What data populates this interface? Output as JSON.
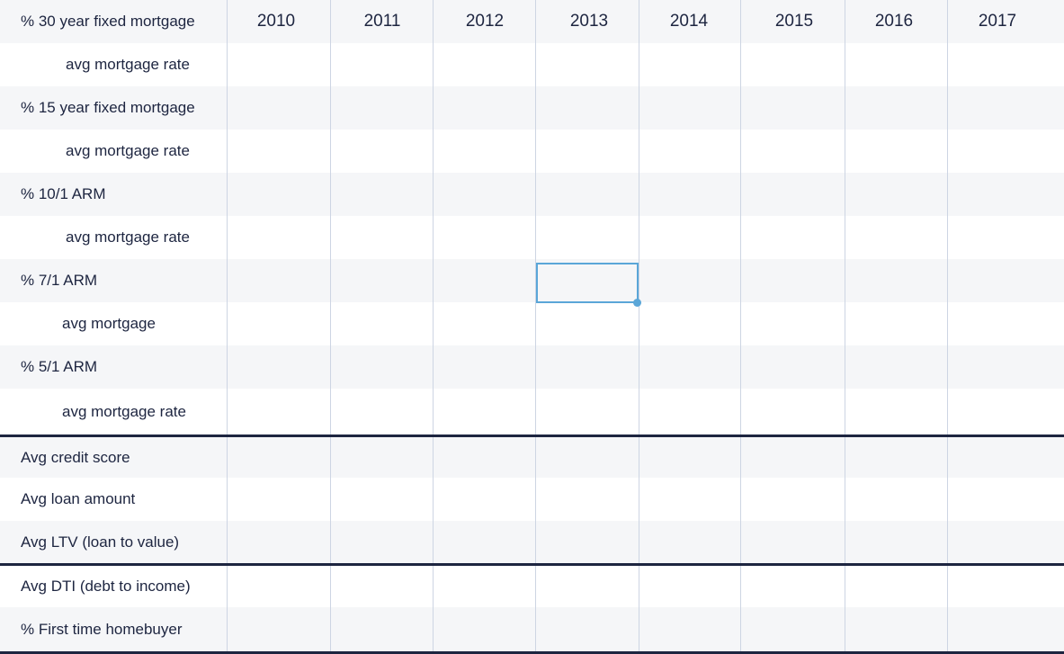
{
  "years": [
    "2010",
    "2011",
    "2012",
    "2013",
    "2014",
    "2015",
    "2016",
    "2017"
  ],
  "rows": [
    {
      "label": "% 30 year fixed mortgage"
    },
    {
      "label": "avg mortgage rate"
    },
    {
      "label": "% 15 year fixed mortgage"
    },
    {
      "label": "avg mortgage rate"
    },
    {
      "label": "% 10/1 ARM"
    },
    {
      "label": "avg mortgage rate"
    },
    {
      "label": "% 7/1 ARM"
    },
    {
      "label": "avg mortgage"
    },
    {
      "label": "% 5/1 ARM"
    },
    {
      "label": "avg mortgage rate"
    },
    {
      "label": "Avg credit score"
    },
    {
      "label": "Avg loan amount"
    },
    {
      "label": "Avg LTV (loan to value)"
    },
    {
      "label": "Avg DTI (debt to income)"
    },
    {
      "label": "% First time homebuyer"
    }
  ],
  "colors": {
    "text": "#1d2540",
    "shaded_row": "#f5f6f8",
    "grid_line": "#cdd5e3",
    "selection": "#5aa6d8"
  }
}
